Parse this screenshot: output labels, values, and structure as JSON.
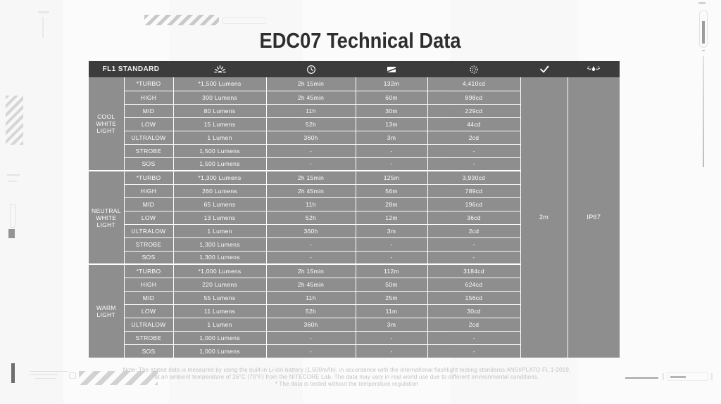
{
  "page": {
    "title": "EDC07 Technical Data"
  },
  "table": {
    "header": {
      "fl1_label": "FL1 STANDARD",
      "column_icons": [
        "light-output-icon",
        "runtime-icon",
        "beam-distance-icon",
        "beam-intensity-icon",
        "impact-resistance-icon",
        "waterproof-icon"
      ]
    },
    "sections": [
      {
        "category": "COOL WHITE LIGHT",
        "rows": [
          {
            "mode": "*TURBO",
            "lumens": "*1,500 Lumens",
            "runtime": "2h 15min",
            "distance": "132m",
            "intensity": "4,410cd"
          },
          {
            "mode": "HIGH",
            "lumens": "300 Lumens",
            "runtime": "2h 45min",
            "distance": "60m",
            "intensity": "898cd"
          },
          {
            "mode": "MID",
            "lumens": "80 Lumens",
            "runtime": "11h",
            "distance": "30m",
            "intensity": "229cd"
          },
          {
            "mode": "LOW",
            "lumens": "15 Lumens",
            "runtime": "52h",
            "distance": "13m",
            "intensity": "44cd"
          },
          {
            "mode": "ULTRALOW",
            "lumens": "1 Lumen",
            "runtime": "360h",
            "distance": "3m",
            "intensity": "2cd"
          },
          {
            "mode": "STROBE",
            "lumens": "1,500 Lumens",
            "runtime": "-",
            "distance": "-",
            "intensity": "-"
          },
          {
            "mode": "SOS",
            "lumens": "1,500 Lumens",
            "runtime": "-",
            "distance": "-",
            "intensity": "-"
          }
        ]
      },
      {
        "category": "NEUTRAL WHITE LIGHT",
        "rows": [
          {
            "mode": "*TURBO",
            "lumens": "*1,300 Lumens",
            "runtime": "2h 15min",
            "distance": "125m",
            "intensity": "3,930cd"
          },
          {
            "mode": "HIGH",
            "lumens": "260 Lumens",
            "runtime": "2h 45min",
            "distance": "56m",
            "intensity": "789cd"
          },
          {
            "mode": "MID",
            "lumens": "65 Lumens",
            "runtime": "11h",
            "distance": "28m",
            "intensity": "196cd"
          },
          {
            "mode": "LOW",
            "lumens": "13 Lumens",
            "runtime": "52h",
            "distance": "12m",
            "intensity": "36cd"
          },
          {
            "mode": "ULTRALOW",
            "lumens": "1 Lumen",
            "runtime": "360h",
            "distance": "3m",
            "intensity": "2cd"
          },
          {
            "mode": "STROBE",
            "lumens": "1,300 Lumens",
            "runtime": "-",
            "distance": "-",
            "intensity": "-"
          },
          {
            "mode": "SOS",
            "lumens": "1,300 Lumens",
            "runtime": "-",
            "distance": "-",
            "intensity": "-"
          }
        ]
      },
      {
        "category": "WARM LIGHT",
        "rows": [
          {
            "mode": "*TURBO",
            "lumens": "*1,000 Lumens",
            "runtime": "2h 15min",
            "distance": "112m",
            "intensity": "3184cd"
          },
          {
            "mode": "HIGH",
            "lumens": "220 Lumens",
            "runtime": "2h 45min",
            "distance": "50m",
            "intensity": "624cd"
          },
          {
            "mode": "MID",
            "lumens": "55 Lumens",
            "runtime": "11h",
            "distance": "25m",
            "intensity": "156cd"
          },
          {
            "mode": "LOW",
            "lumens": "11 Lumens",
            "runtime": "52h",
            "distance": "11m",
            "intensity": "30cd"
          },
          {
            "mode": "ULTRALOW",
            "lumens": "1 Lumen",
            "runtime": "360h",
            "distance": "3m",
            "intensity": "2cd"
          },
          {
            "mode": "STROBE",
            "lumens": "1,000 Lumens",
            "runtime": "-",
            "distance": "-",
            "intensity": "-"
          },
          {
            "mode": "SOS",
            "lumens": "1,000 Lumens",
            "runtime": "-",
            "distance": "-",
            "intensity": "-"
          }
        ]
      }
    ],
    "impact_resistance": "2m",
    "waterproof_rating": "IP67"
  },
  "note": {
    "line1": "Note: The stated data is measured by using the built-in Li-ion battery (1,500mAh), in accordance with the international flashlight testing standards ANSI/PLATO FL 1-2019,",
    "line2": "at an ambient temperature of 26°C (79°F) from the NITECORE Lab. The data may vary in real world use due to different environmental conditions.",
    "line3": "* The data is tested without the temperature regulation"
  },
  "colors": {
    "header_bg": "#3c3c3c",
    "cell_bg": "#8e8e8e",
    "cell_text": "#fdfdfd",
    "title_text": "#2e2e2e",
    "note_text": "#c2c2c2"
  }
}
